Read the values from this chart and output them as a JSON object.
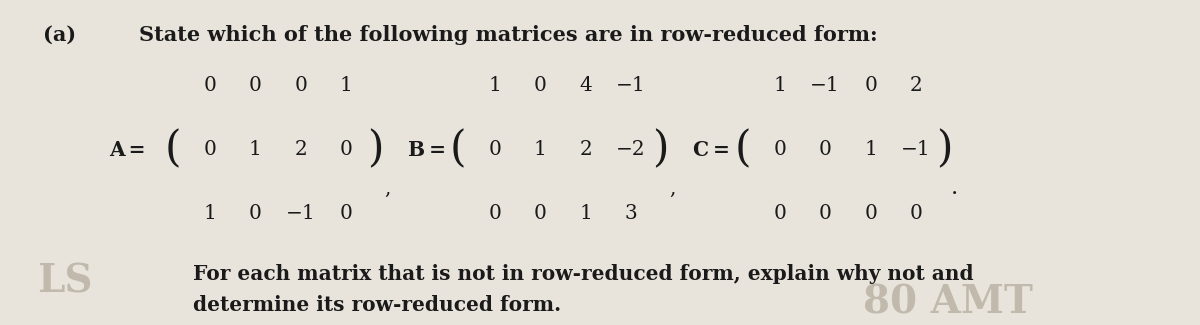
{
  "bg_color": "#e8e4dc",
  "title_part_a": "(a)",
  "title_text": "State which of the following matrices are in row-reduced form:",
  "matrix_A_label": "A",
  "matrix_A": [
    [
      "0",
      "0",
      "0",
      "1"
    ],
    [
      "0",
      "1",
      "2",
      "0"
    ],
    [
      "1",
      "0",
      "−1",
      "0"
    ]
  ],
  "matrix_B_label": "B",
  "matrix_B": [
    [
      "1",
      "0",
      "4",
      "−1"
    ],
    [
      "0",
      "1",
      "2",
      "−2"
    ],
    [
      "0",
      "0",
      "1",
      "3"
    ]
  ],
  "matrix_C_label": "C",
  "matrix_C": [
    [
      "1",
      "−1",
      "0",
      "2"
    ],
    [
      "0",
      "0",
      "1",
      "−1"
    ],
    [
      "0",
      "0",
      "0",
      "0"
    ]
  ],
  "footer_line1": "For each matrix that is not in row-reduced form, explain why not and",
  "footer_line2": "determine its row-reduced form.",
  "watermark_left": "LS",
  "watermark_right": "80 AMT",
  "font_color": "#1a1a1a",
  "watermark_color": "#b0a898",
  "title_fontsize": 15,
  "matrix_fontsize": 14.5,
  "footer_fontsize": 14.5,
  "label_fontsize": 14.5
}
